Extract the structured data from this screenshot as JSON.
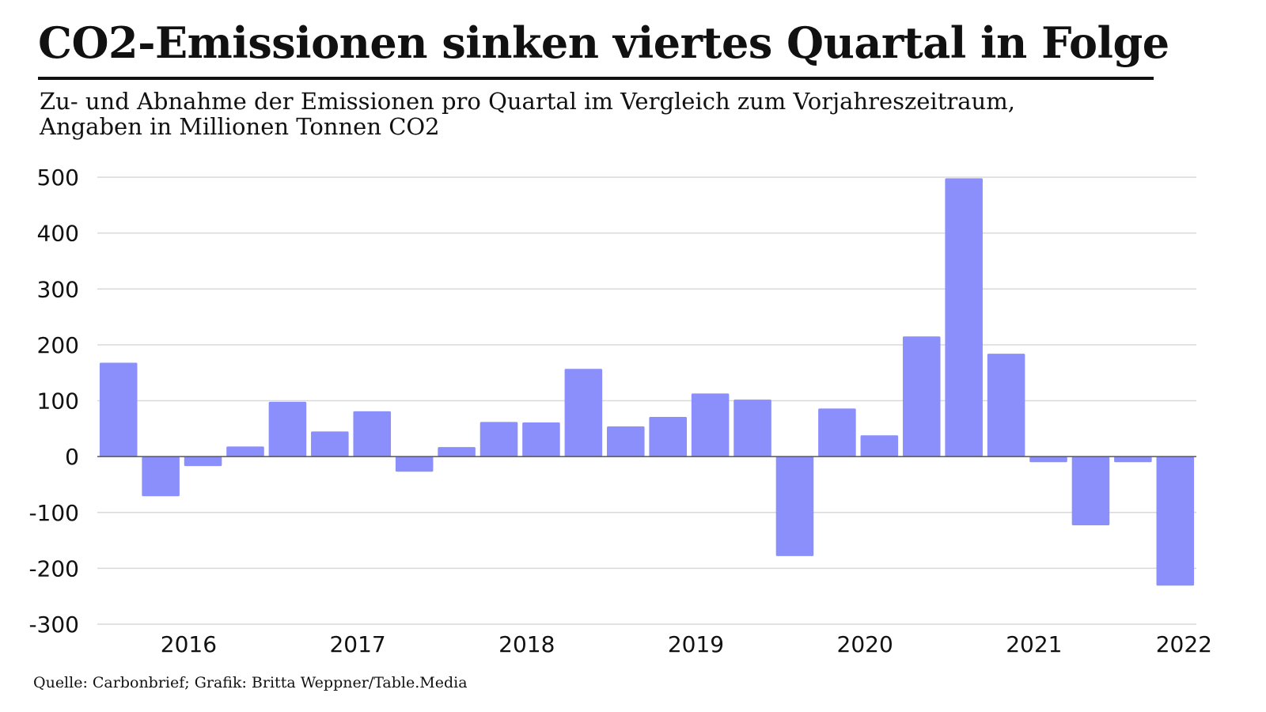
{
  "title": "CO2-Emissionen sinken viertes Quartal in Folge",
  "subtitle_line1": "Zu- und Abnahme der Emissionen pro Quartal im Vergleich zum Vorjahreszeitraum,",
  "subtitle_line2": "Angaben in Millionen Tonnen CO2",
  "footer": "Quelle: Carbonbrief; Grafik: Britta Weppner/Table.Media",
  "colors": {
    "bar": "#8a8ffc",
    "grid": "#d9d9d9",
    "zero_line": "#555555"
  },
  "chart_data": {
    "type": "bar",
    "title": "CO2-Emissionen sinken viertes Quartal in Folge",
    "ylabel": "",
    "xlabel": "",
    "ylim": [
      -300,
      500
    ],
    "yticks": [
      500,
      400,
      300,
      200,
      100,
      0,
      -100,
      -200,
      -300
    ],
    "xticks": [
      "2016",
      "2017",
      "2018",
      "2019",
      "2020",
      "2021",
      "2022"
    ],
    "grid": true,
    "values": [
      168,
      -71,
      -17,
      18,
      98,
      45,
      81,
      -27,
      17,
      62,
      61,
      157,
      54,
      71,
      113,
      102,
      -178,
      86,
      38,
      215,
      498,
      184,
      -10,
      -123,
      -10,
      -231
    ]
  }
}
